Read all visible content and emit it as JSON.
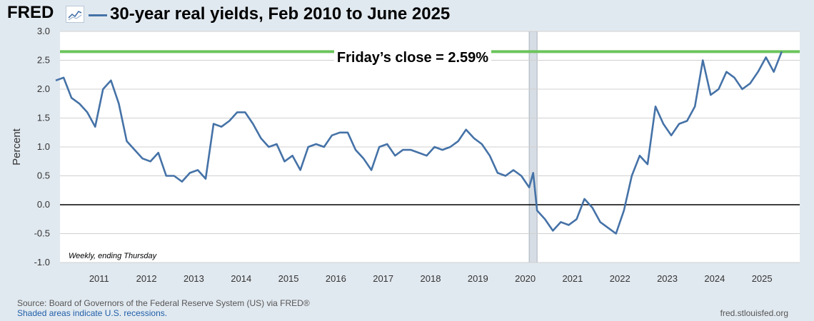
{
  "header": {
    "logo": "FRED",
    "title": "30-year real yields, Feb 2010 to June 2025"
  },
  "colors": {
    "series": "#4572a7",
    "highlight_line": "#6cc45c",
    "zero_line": "#000000",
    "recession": "#d7dde4",
    "background": "#e1e9f0",
    "plot": "#ffffff"
  },
  "footer": {
    "source": "Source: Board of Governors of the Federal Reserve System (US) via FRED®",
    "recessions_note": "Shaded areas indicate U.S. recessions.",
    "site": "fred.stlouisfed.org"
  },
  "chart_data": {
    "type": "line",
    "ylabel": "Percent",
    "ylim": [
      -1.0,
      3.0
    ],
    "yticks": [
      "3.0",
      "2.5",
      "2.0",
      "1.5",
      "1.0",
      "0.5",
      "0.0",
      "-0.5",
      "-1.0"
    ],
    "xticks": [
      "2011",
      "2012",
      "2013",
      "2014",
      "2015",
      "2016",
      "2017",
      "2018",
      "2019",
      "2020",
      "2021",
      "2022",
      "2023",
      "2024",
      "2025"
    ],
    "xlim": [
      "2010-02",
      "2025-06"
    ],
    "grid": true,
    "note": "Weekly, ending Thursday",
    "annotation": "Friday’s close = 2.59%",
    "horizontal_line": 2.65,
    "recession": [
      "2020-02",
      "2020-04"
    ],
    "series": [
      {
        "x": [
          "2010-02",
          "2010-04",
          "2010-06",
          "2010-08",
          "2010-10",
          "2010-12",
          "2011-02",
          "2011-04",
          "2011-06",
          "2011-08",
          "2011-10",
          "2011-12",
          "2012-02",
          "2012-04",
          "2012-06",
          "2012-08",
          "2012-10",
          "2012-12",
          "2013-02",
          "2013-04",
          "2013-06",
          "2013-08",
          "2013-10",
          "2013-12",
          "2014-02",
          "2014-04",
          "2014-06",
          "2014-08",
          "2014-10",
          "2014-12",
          "2015-02",
          "2015-04",
          "2015-06",
          "2015-08",
          "2015-10",
          "2015-12",
          "2016-02",
          "2016-04",
          "2016-06",
          "2016-08",
          "2016-10",
          "2016-12",
          "2017-02",
          "2017-04",
          "2017-06",
          "2017-08",
          "2017-10",
          "2017-12",
          "2018-02",
          "2018-04",
          "2018-06",
          "2018-08",
          "2018-10",
          "2018-12",
          "2019-02",
          "2019-04",
          "2019-06",
          "2019-08",
          "2019-10",
          "2019-12",
          "2020-02",
          "2020-03",
          "2020-04",
          "2020-06",
          "2020-08",
          "2020-10",
          "2020-12",
          "2021-02",
          "2021-04",
          "2021-06",
          "2021-08",
          "2021-10",
          "2021-12",
          "2022-02",
          "2022-04",
          "2022-06",
          "2022-08",
          "2022-10",
          "2022-12",
          "2023-02",
          "2023-04",
          "2023-06",
          "2023-08",
          "2023-10",
          "2023-12",
          "2024-02",
          "2024-04",
          "2024-06",
          "2024-08",
          "2024-10",
          "2024-12",
          "2025-02",
          "2025-04",
          "2025-06"
        ],
        "values": [
          2.15,
          2.2,
          1.85,
          1.75,
          1.6,
          1.35,
          2.0,
          2.15,
          1.75,
          1.1,
          0.95,
          0.8,
          0.75,
          0.9,
          0.5,
          0.5,
          0.4,
          0.55,
          0.6,
          0.45,
          1.4,
          1.35,
          1.45,
          1.6,
          1.6,
          1.4,
          1.15,
          1.0,
          1.05,
          0.75,
          0.85,
          0.6,
          1.0,
          1.05,
          1.0,
          1.2,
          1.25,
          1.25,
          0.95,
          0.8,
          0.6,
          1.0,
          1.05,
          0.85,
          0.95,
          0.95,
          0.9,
          0.85,
          1.0,
          0.95,
          1.0,
          1.1,
          1.3,
          1.15,
          1.05,
          0.85,
          0.55,
          0.5,
          0.6,
          0.5,
          0.3,
          0.55,
          -0.1,
          -0.25,
          -0.45,
          -0.3,
          -0.35,
          -0.25,
          0.1,
          -0.05,
          -0.3,
          -0.4,
          -0.5,
          -0.1,
          0.5,
          0.85,
          0.7,
          1.7,
          1.4,
          1.2,
          1.4,
          1.45,
          1.7,
          2.5,
          1.9,
          2.0,
          2.3,
          2.2,
          2.0,
          2.1,
          2.3,
          2.55,
          2.3,
          2.65
        ]
      }
    ]
  }
}
